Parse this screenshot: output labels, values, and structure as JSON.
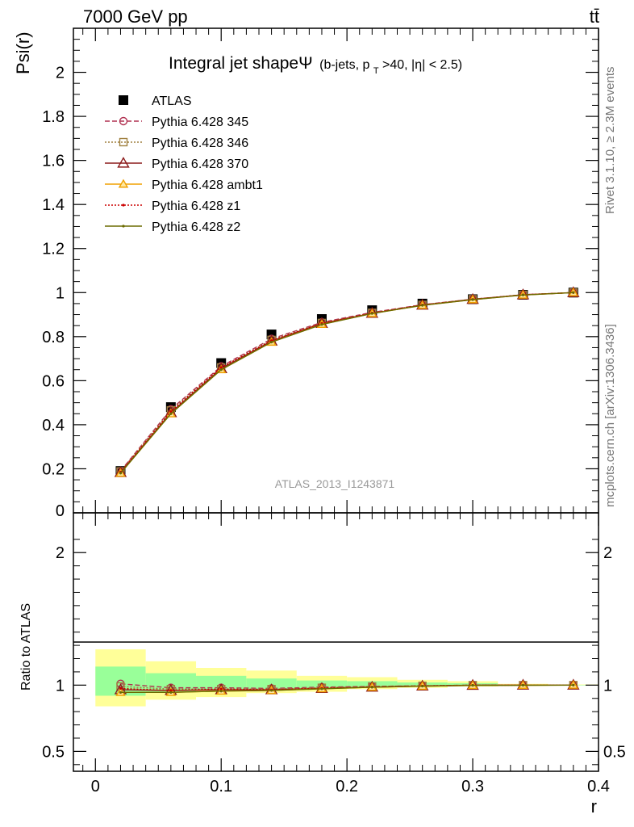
{
  "header": {
    "energy_label": "7000 GeV pp",
    "process_label": "tt̄",
    "side_rivet": "Rivet 3.1.10, ≥ 2.3M events",
    "side_mcplots": "mcplots.cern.ch [arXiv:1306.3436]",
    "analysis_id": "ATLAS_2013_I1243871"
  },
  "chart_data": [
    {
      "type": "line",
      "title_main": "Integral jet shapeΨ",
      "title_sub_a": "(b-jets, p",
      "title_sub_sub": "T",
      "title_sub_b": ">40, |η| < 2.5)",
      "ylabel": "Psi(r)",
      "xlabel": "",
      "xlim": [
        -0.0175,
        0.4
      ],
      "ylim": [
        0,
        2.2
      ],
      "yticks": [
        0.2,
        0.4,
        0.6,
        0.8,
        1,
        1.2,
        1.4,
        1.6,
        1.8,
        2
      ],
      "ytick_labels": [
        "0.2",
        "0.4",
        "0.6",
        "0.8",
        "1",
        "1.2",
        "1.4",
        "1.6",
        "1.8",
        "2"
      ],
      "y_zero_label": "0",
      "x": [
        0.02,
        0.06,
        0.1,
        0.14,
        0.18,
        0.22,
        0.26,
        0.3,
        0.34,
        0.38
      ],
      "data_series": {
        "name": "ATLAS",
        "values": [
          0.19,
          0.48,
          0.68,
          0.81,
          0.88,
          0.92,
          0.95,
          0.97,
          0.99,
          1.0
        ]
      },
      "series": [
        {
          "name": "Pythia 6.428 345",
          "color": "#b03050",
          "values": [
            0.19,
            0.47,
            0.665,
            0.79,
            0.865,
            0.91,
            0.945,
            0.97,
            0.99,
            1.0
          ]
        },
        {
          "name": "Pythia 6.428 346",
          "color": "#a08040",
          "values": [
            0.188,
            0.465,
            0.66,
            0.785,
            0.862,
            0.908,
            0.944,
            0.97,
            0.99,
            1.0
          ]
        },
        {
          "name": "Pythia 6.428 370",
          "color": "#8b1a1a",
          "values": [
            0.183,
            0.455,
            0.655,
            0.78,
            0.86,
            0.906,
            0.943,
            0.969,
            0.99,
            1.0
          ]
        },
        {
          "name": "Pythia 6.428 ambt1",
          "color": "#f0a000",
          "values": [
            0.18,
            0.45,
            0.65,
            0.775,
            0.856,
            0.905,
            0.942,
            0.968,
            0.989,
            1.0
          ]
        },
        {
          "name": "Pythia 6.428 z1",
          "color": "#cc0000",
          "values": [
            0.185,
            0.46,
            0.66,
            0.782,
            0.86,
            0.907,
            0.944,
            0.969,
            0.99,
            1.0
          ]
        },
        {
          "name": "Pythia 6.428 z2",
          "color": "#6b6b00",
          "values": [
            0.18,
            0.45,
            0.65,
            0.775,
            0.855,
            0.905,
            0.942,
            0.968,
            0.989,
            1.0
          ]
        }
      ]
    },
    {
      "type": "line",
      "ylabel": "Ratio to ATLAS",
      "xlabel": "r",
      "xlim": [
        -0.0175,
        0.4
      ],
      "ylim": [
        0.35,
        2.3
      ],
      "yticks": [
        0.5,
        1,
        2
      ],
      "ytick_labels": [
        "0.5",
        "1",
        "2"
      ],
      "xticks": [
        0,
        0.1,
        0.2,
        0.3,
        0.4
      ],
      "xtick_labels": [
        "0",
        "0.1",
        "0.2",
        "0.3",
        "0.4"
      ],
      "bins": [
        [
          0,
          0.04
        ],
        [
          0.04,
          0.08
        ],
        [
          0.08,
          0.12
        ],
        [
          0.12,
          0.16
        ],
        [
          0.16,
          0.2
        ],
        [
          0.2,
          0.24
        ],
        [
          0.24,
          0.28
        ],
        [
          0.28,
          0.32
        ],
        [
          0.32,
          0.36
        ],
        [
          0.36,
          0.4
        ]
      ],
      "band_yellow": [
        [
          0.84,
          1.27
        ],
        [
          0.89,
          1.18
        ],
        [
          0.91,
          1.13
        ],
        [
          0.94,
          1.11
        ],
        [
          0.95,
          1.07
        ],
        [
          0.97,
          1.06
        ],
        [
          0.98,
          1.04
        ],
        [
          0.99,
          1.03
        ],
        [
          0.995,
          1.01
        ],
        [
          0.998,
          1.005
        ]
      ],
      "band_green": [
        [
          0.92,
          1.14
        ],
        [
          0.95,
          1.09
        ],
        [
          0.96,
          1.07
        ],
        [
          0.97,
          1.05
        ],
        [
          0.975,
          1.035
        ],
        [
          0.985,
          1.03
        ],
        [
          0.99,
          1.02
        ],
        [
          0.995,
          1.015
        ],
        [
          0.998,
          1.005
        ],
        [
          0.999,
          1.002
        ]
      ],
      "x": [
        0.02,
        0.06,
        0.1,
        0.14,
        0.18,
        0.22,
        0.26,
        0.3,
        0.34,
        0.38
      ],
      "series": [
        {
          "name": "Pythia 6.428 345",
          "color": "#b03050",
          "values": [
            1.01,
            0.98,
            0.98,
            0.975,
            0.985,
            0.99,
            0.995,
            1.0,
            1.0,
            1.0
          ]
        },
        {
          "name": "Pythia 6.428 346",
          "color": "#a08040",
          "values": [
            0.99,
            0.97,
            0.97,
            0.97,
            0.98,
            0.99,
            0.995,
            1.0,
            1.0,
            1.0
          ]
        },
        {
          "name": "Pythia 6.428 370",
          "color": "#8b1a1a",
          "values": [
            0.965,
            0.96,
            0.965,
            0.965,
            0.975,
            0.985,
            0.993,
            0.999,
            1.0,
            1.0
          ]
        },
        {
          "name": "Pythia 6.428 ambt1",
          "color": "#f0a000",
          "values": [
            0.945,
            0.945,
            0.955,
            0.96,
            0.973,
            0.984,
            0.992,
            0.998,
            0.999,
            1.0
          ]
        },
        {
          "name": "Pythia 6.428 z1",
          "color": "#cc0000",
          "values": [
            0.975,
            0.96,
            0.97,
            0.965,
            0.977,
            0.986,
            0.994,
            0.999,
            1.0,
            1.0
          ]
        },
        {
          "name": "Pythia 6.428 z2",
          "color": "#6b6b00",
          "values": [
            0.945,
            0.945,
            0.955,
            0.96,
            0.972,
            0.984,
            0.992,
            0.998,
            0.999,
            1.0
          ]
        }
      ]
    }
  ]
}
